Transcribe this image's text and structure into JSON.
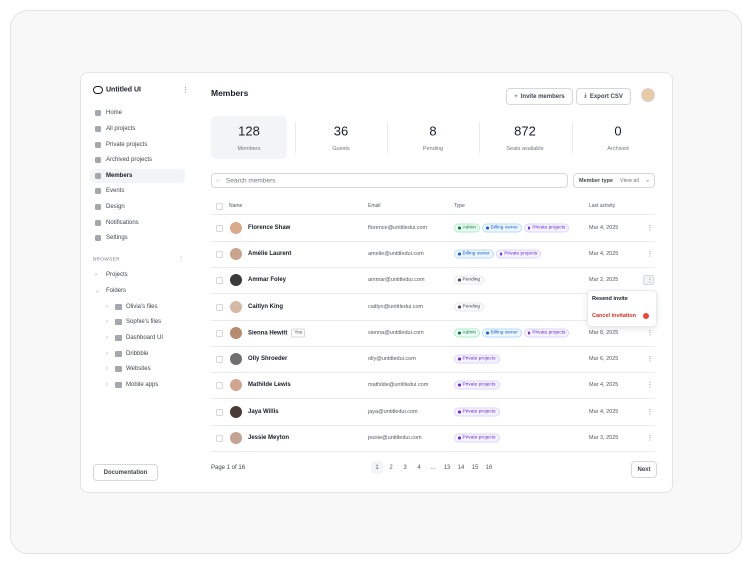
{
  "sidebar": {
    "brand": "Untitled UI",
    "nav": [
      "Home",
      "All projects",
      "Private projects",
      "Archived projects",
      "Members",
      "Events",
      "Design",
      "Notifications",
      "Settings"
    ],
    "active": 4,
    "browser_label": "BROWSER",
    "tree": [
      "Projects",
      "Folders"
    ],
    "folders": [
      "Olivia's files",
      "Sophie's files",
      "Dashboard UI",
      "Dribbble",
      "Websites",
      "Mobile apps"
    ],
    "documentation": "Documentation"
  },
  "header": {
    "title": "Members",
    "buttons": [
      "Invite members",
      "Export CSV"
    ]
  },
  "stats": [
    {
      "value": "128",
      "label": "Members"
    },
    {
      "value": "36",
      "label": "Guests"
    },
    {
      "value": "8",
      "label": "Pending"
    },
    {
      "value": "872",
      "label": "Seats available"
    },
    {
      "value": "0",
      "label": "Archived"
    }
  ],
  "search": {
    "placeholder": "Search members",
    "filter_label": "Member type",
    "filter_value": "View all"
  },
  "table": {
    "columns": [
      "Name",
      "Email",
      "Type",
      "Last activity"
    ],
    "rows": [
      {
        "name": "Florence Shaw",
        "email": "florence@untitledui.com",
        "tags": [
          {
            "label": "Admin",
            "color": "green"
          },
          {
            "label": "Billing owner",
            "color": "blue"
          },
          {
            "label": "Private projects",
            "color": "purple"
          }
        ],
        "date": "Mar 4, 2025"
      },
      {
        "name": "Amélie Laurent",
        "email": "amelie@untitledui.com",
        "tags": [
          {
            "label": "Billing owner",
            "color": "blue"
          },
          {
            "label": "Private projects",
            "color": "purple"
          }
        ],
        "date": "Mar 4, 2025"
      },
      {
        "name": "Ammar Foley",
        "email": "ammar@untitledui.com",
        "tags": [
          {
            "label": "Pending",
            "color": "gray"
          }
        ],
        "date": "Mar 2, 2025"
      },
      {
        "name": "Caitlyn King",
        "email": "caitlyn@untitledui.com",
        "tags": [
          {
            "label": "Pending",
            "color": "gray"
          }
        ]
      },
      {
        "name": "Sienna Hewitt",
        "badge": "You",
        "email": "sienna@untitledui.com",
        "tags": [
          {
            "label": "Admin",
            "color": "green"
          },
          {
            "label": "Billing owner",
            "color": "blue"
          },
          {
            "label": "Private projects",
            "color": "purple"
          }
        ],
        "date": "Mar 8, 2025"
      },
      {
        "name": "Olly Shroeder",
        "email": "olly@untitledui.com",
        "tags": [
          {
            "label": "Private projects",
            "color": "purple"
          }
        ],
        "date": "Mar 6, 2025"
      },
      {
        "name": "Mathilde Lewis",
        "email": "mathilde@untitledui.com",
        "tags": [
          {
            "label": "Private projects",
            "color": "purple"
          }
        ],
        "date": "Mar 4, 2025"
      },
      {
        "name": "Jaya Willis",
        "email": "jaya@untitledui.com",
        "tags": [
          {
            "label": "Private projects",
            "color": "purple"
          }
        ],
        "date": "Mar 4, 2025"
      },
      {
        "name": "Jessie Meyton",
        "email": "jessie@untitledui.com",
        "tags": [
          {
            "label": "Private projects",
            "color": "purple"
          }
        ],
        "date": "Mar 3, 2025"
      }
    ]
  },
  "menu": [
    "Resend invite",
    "Cancel invitation"
  ],
  "footer": {
    "page_info": "Page 1 of 16",
    "pages": [
      "1",
      "2",
      "3",
      "4",
      "...",
      "13",
      "14",
      "15",
      "16"
    ],
    "next": "Next"
  }
}
